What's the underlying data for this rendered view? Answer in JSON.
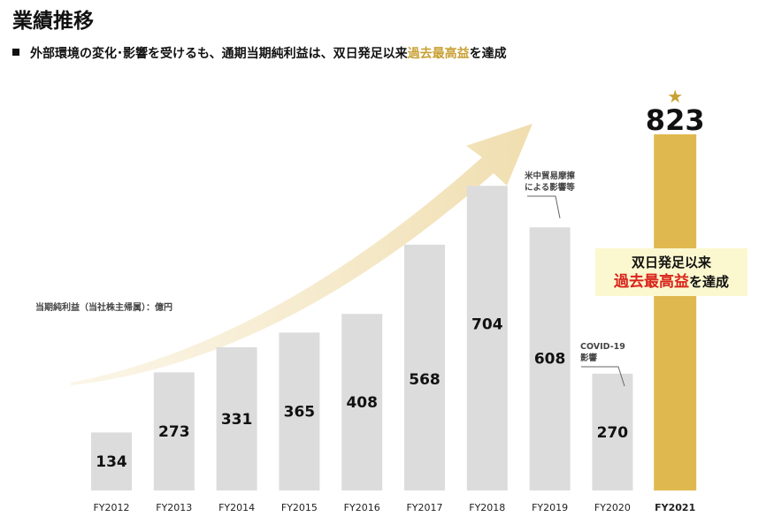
{
  "page": {
    "title": "業績推移",
    "subtitle_prefix": "外部環境の変化･影響を受けるも、通期当期純利益は、双日発足以来",
    "subtitle_highlight": "過去最高益",
    "subtitle_suffix": "を達成",
    "unit_label": "当期純利益（当社株主帰属）：億円"
  },
  "callout": {
    "line1": "双日発足以来",
    "line2_highlight": "過去最高益",
    "line2_suffix": "を達成"
  },
  "notes": {
    "trade_friction_line1": "米中貿易摩擦",
    "trade_friction_line2": "による影響等",
    "covid_line1": "COVID-19",
    "covid_line2": "影響"
  },
  "star_glyph": "★",
  "colors": {
    "bar_gray": "#dcdcdc",
    "bar_gold": "#dfb94f",
    "arrow_gold": "#efdcaa",
    "highlight_gold": "#c8a034",
    "highlight_red": "#d9241b",
    "callout_bg": "#fbf8cf"
  },
  "chart_data": {
    "type": "bar",
    "categories": [
      "FY2012",
      "FY2013",
      "FY2014",
      "FY2015",
      "FY2016",
      "FY2017",
      "FY2018",
      "FY2019",
      "FY2020",
      "FY2021"
    ],
    "values": [
      134,
      273,
      331,
      365,
      408,
      568,
      704,
      608,
      270,
      823
    ],
    "highlight_category": "FY2021",
    "ylim": [
      0,
      823
    ],
    "grid": false,
    "legend": "none"
  }
}
